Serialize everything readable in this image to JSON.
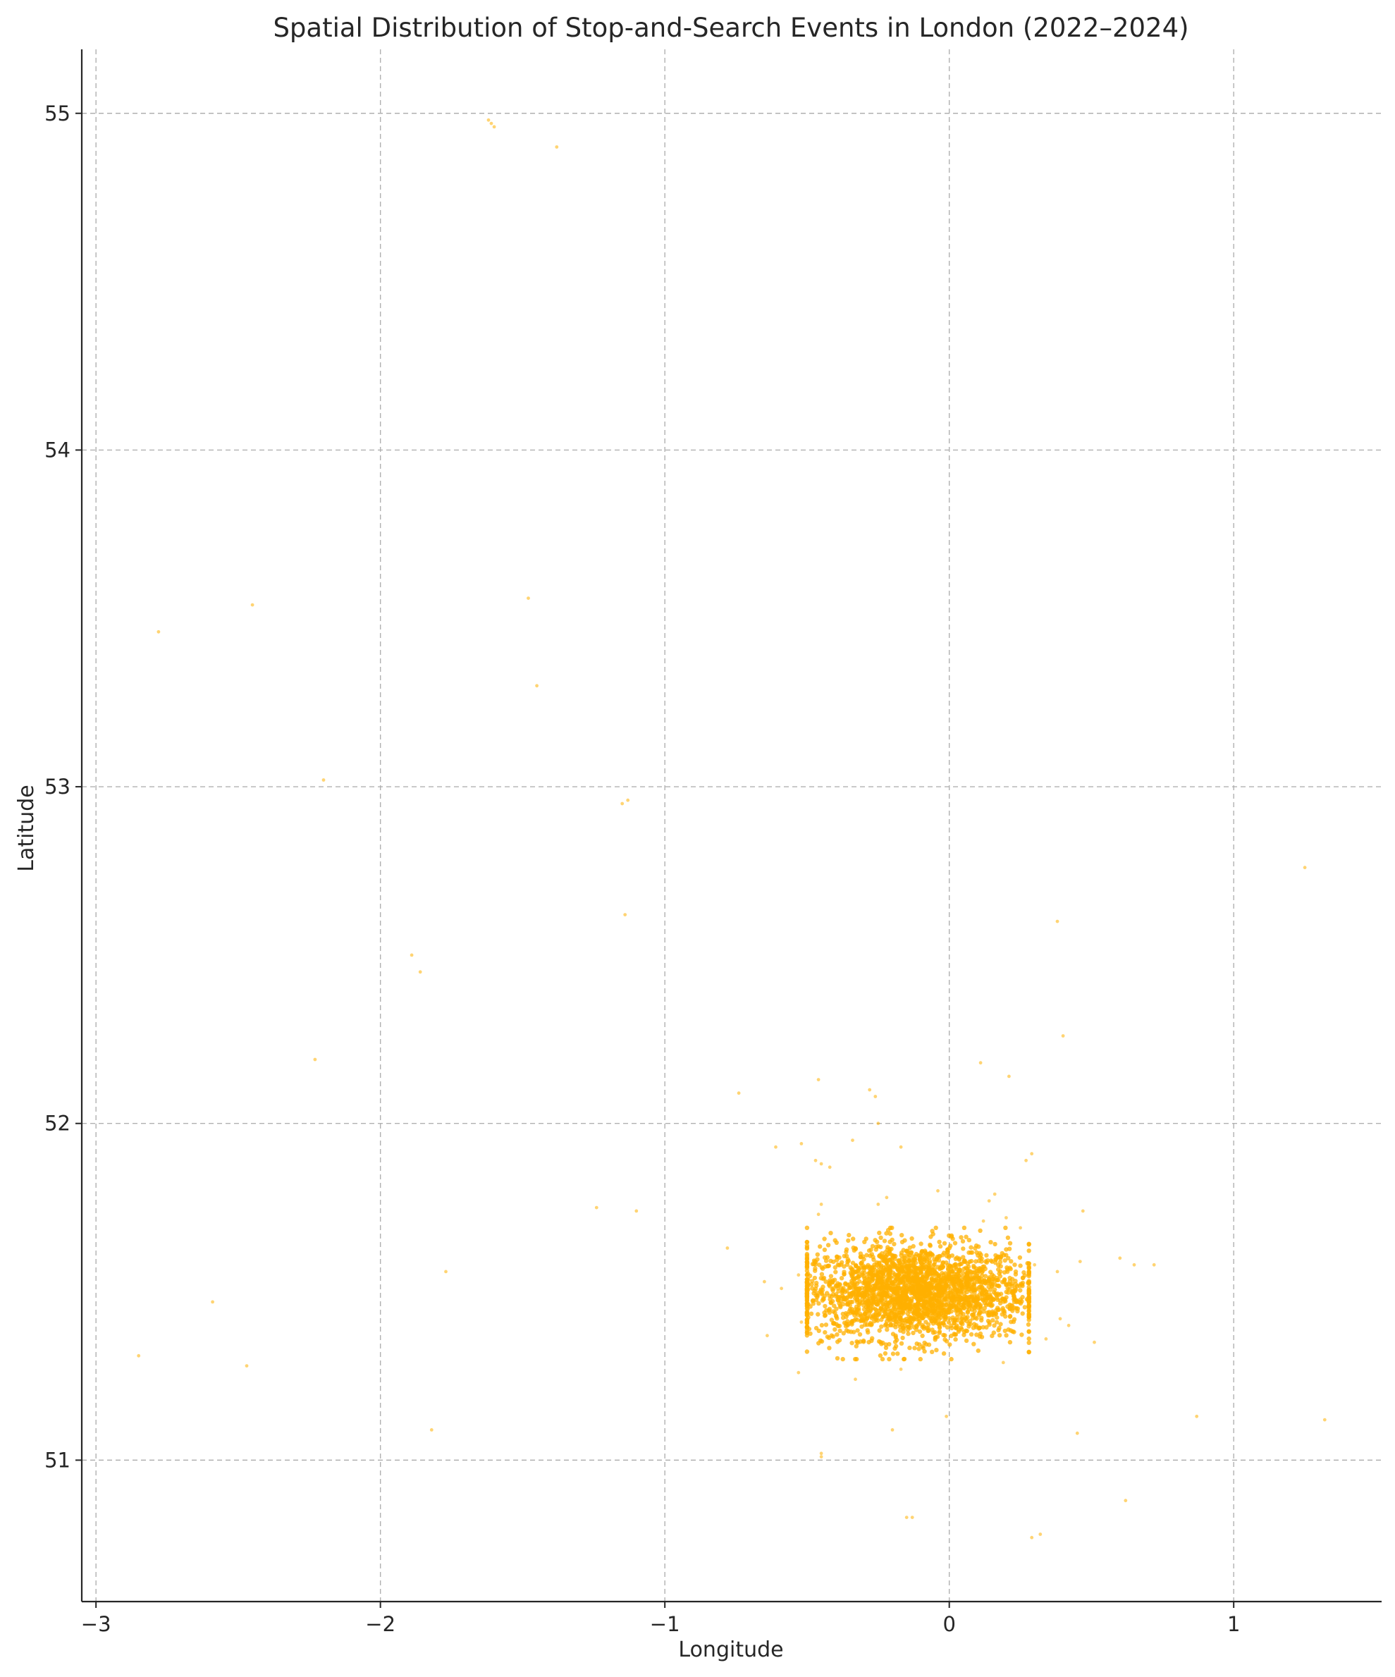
{
  "chart_data": {
    "type": "scatter",
    "title": "Spatial Distribution of Stop-and-Search Events in London (2022–2024)",
    "xlabel": "Longitude",
    "ylabel": "Latitude",
    "xlim": [
      -3.05,
      1.52
    ],
    "ylim": [
      50.58,
      55.19
    ],
    "xticks": [
      -3,
      -2,
      -1,
      0,
      1
    ],
    "xtick_labels": [
      "−3",
      "−2",
      "−1",
      "0",
      "1"
    ],
    "yticks": [
      51,
      52,
      53,
      54,
      55
    ],
    "ytick_labels": [
      "51",
      "52",
      "53",
      "54",
      "55"
    ],
    "grid": true,
    "legend": "none",
    "point_color": "#ffb000",
    "cluster": {
      "center_lon": -0.12,
      "center_lat": 51.5,
      "lon_spread": 0.2,
      "lat_spread": 0.07,
      "lon_range": [
        -0.5,
        0.28
      ],
      "lat_range": [
        51.3,
        51.69
      ]
    },
    "outliers": [
      [
        -1.61,
        54.97
      ],
      [
        -1.6,
        54.96
      ],
      [
        -1.62,
        54.98
      ],
      [
        -1.38,
        54.9
      ],
      [
        -2.45,
        53.54
      ],
      [
        -2.78,
        53.46
      ],
      [
        -1.48,
        53.56
      ],
      [
        -1.45,
        53.3
      ],
      [
        -2.2,
        53.02
      ],
      [
        -1.13,
        52.96
      ],
      [
        -1.15,
        52.95
      ],
      [
        -1.14,
        52.62
      ],
      [
        -1.89,
        52.5
      ],
      [
        -1.86,
        52.45
      ],
      [
        -2.23,
        52.19
      ],
      [
        1.25,
        52.76
      ],
      [
        0.38,
        52.6
      ],
      [
        0.4,
        52.26
      ],
      [
        0.11,
        52.18
      ],
      [
        0.21,
        52.14
      ],
      [
        -0.46,
        52.13
      ],
      [
        -0.74,
        52.09
      ],
      [
        -0.28,
        52.1
      ],
      [
        -0.26,
        52.08
      ],
      [
        -0.25,
        52.0
      ],
      [
        -0.34,
        51.95
      ],
      [
        -0.52,
        51.94
      ],
      [
        -0.45,
        51.88
      ],
      [
        -0.42,
        51.87
      ],
      [
        -0.61,
        51.93
      ],
      [
        -0.47,
        51.89
      ],
      [
        0.29,
        51.91
      ],
      [
        0.27,
        51.89
      ],
      [
        -0.17,
        51.93
      ],
      [
        -0.04,
        51.8
      ],
      [
        0.16,
        51.79
      ],
      [
        0.14,
        51.77
      ],
      [
        -0.25,
        51.76
      ],
      [
        -0.22,
        51.78
      ],
      [
        0.2,
        51.72
      ],
      [
        0.12,
        51.71
      ],
      [
        0.25,
        51.69
      ],
      [
        0.47,
        51.74
      ],
      [
        -0.45,
        51.76
      ],
      [
        -0.46,
        51.73
      ],
      [
        -1.24,
        51.75
      ],
      [
        -1.1,
        51.74
      ],
      [
        -0.78,
        51.63
      ],
      [
        -0.65,
        51.53
      ],
      [
        -0.53,
        51.55
      ],
      [
        -0.59,
        51.51
      ],
      [
        0.6,
        51.6
      ],
      [
        0.65,
        51.58
      ],
      [
        0.72,
        51.58
      ],
      [
        0.46,
        51.59
      ],
      [
        0.38,
        51.56
      ],
      [
        0.3,
        51.58
      ],
      [
        -1.77,
        51.56
      ],
      [
        -2.59,
        51.47
      ],
      [
        -2.85,
        51.31
      ],
      [
        -2.47,
        51.28
      ],
      [
        -0.64,
        51.37
      ],
      [
        -0.53,
        51.26
      ],
      [
        -0.33,
        51.24
      ],
      [
        -0.52,
        51.41
      ],
      [
        0.19,
        51.29
      ],
      [
        0.34,
        51.36
      ],
      [
        0.42,
        51.4
      ],
      [
        0.51,
        51.35
      ],
      [
        0.39,
        51.42
      ],
      [
        -0.17,
        51.27
      ],
      [
        -1.82,
        51.09
      ],
      [
        -0.2,
        51.09
      ],
      [
        -0.45,
        51.02
      ],
      [
        -0.45,
        51.01
      ],
      [
        -0.01,
        51.13
      ],
      [
        0.45,
        51.08
      ],
      [
        0.87,
        51.13
      ],
      [
        1.32,
        51.12
      ],
      [
        0.62,
        50.88
      ],
      [
        -0.15,
        50.83
      ],
      [
        -0.13,
        50.83
      ],
      [
        0.32,
        50.78
      ],
      [
        0.29,
        50.77
      ]
    ]
  }
}
